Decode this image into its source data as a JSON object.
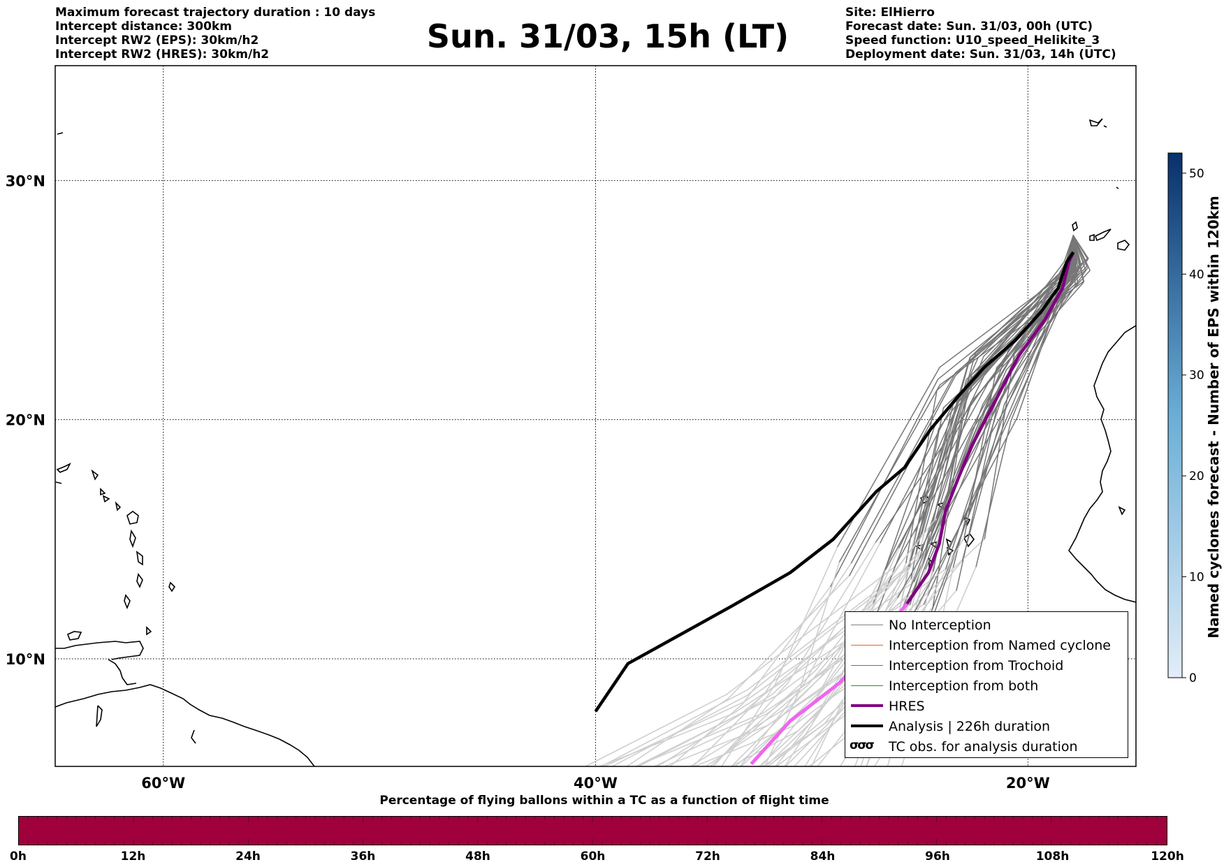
{
  "header": {
    "title": "Sun. 31/03, 15h (LT)",
    "left_lines": [
      "Maximum forecast trajectory duration : 10 days",
      "Intercept distance: 300km",
      "Intercept RW2 (EPS):  30km/h2",
      "Intercept RW2 (HRES): 30km/h2"
    ],
    "right_lines": [
      "Site: ElHierro",
      "Forecast date: Sun. 31/03, 00h (UTC)",
      "Speed function: U10_speed_Helikite_3",
      "Deployment date: Sun. 31/03, 14h (UTC)"
    ]
  },
  "map": {
    "lon_range": [
      -65,
      -15
    ],
    "lat_range": [
      5.5,
      34.8
    ],
    "lat_labels": [
      "30°N",
      "20°N",
      "10°N"
    ],
    "lat_values": [
      30,
      20,
      10
    ],
    "lon_labels": [
      "60°W",
      "40°W",
      "20°W"
    ],
    "lon_values": [
      -60,
      -40,
      -20
    ],
    "launch_site": {
      "lon": -17.9,
      "lat": 27.7
    },
    "analysis_track": [
      [
        -17.9,
        27.0
      ],
      [
        -18.2,
        26.6
      ],
      [
        -18.6,
        25.5
      ],
      [
        -19.4,
        24.5
      ],
      [
        -20.6,
        23.3
      ],
      [
        -22.0,
        22.2
      ],
      [
        -23.2,
        21.0
      ],
      [
        -24.5,
        19.6
      ],
      [
        -25.7,
        18.0
      ],
      [
        -27.0,
        17.0
      ],
      [
        -29.0,
        15.0
      ],
      [
        -31.0,
        13.6
      ],
      [
        -33.7,
        12.2
      ],
      [
        -36.3,
        10.9
      ],
      [
        -38.5,
        9.8
      ],
      [
        -40.0,
        7.8
      ]
    ],
    "hres_track": [
      [
        -17.9,
        27.0
      ],
      [
        -18.1,
        26.6
      ],
      [
        -18.4,
        25.5
      ],
      [
        -19.2,
        24.2
      ],
      [
        -20.4,
        22.7
      ],
      [
        -21.5,
        20.8
      ],
      [
        -22.6,
        18.9
      ],
      [
        -23.2,
        17.6
      ],
      [
        -23.8,
        16.2
      ],
      [
        -24.1,
        14.8
      ],
      [
        -24.6,
        13.6
      ],
      [
        -25.6,
        12.3
      ],
      [
        -27.1,
        10.6
      ],
      [
        -28.7,
        9.0
      ],
      [
        -31.0,
        7.4
      ],
      [
        -32.8,
        5.6
      ]
    ]
  },
  "colorbar": {
    "label": "Named cyclones forecast - Number of EPS within 120km",
    "ticks": [
      "0",
      "10",
      "20",
      "30",
      "40",
      "50"
    ],
    "min": 0,
    "max": 52,
    "color_low": "#e2edf8",
    "color_high": "#08306b"
  },
  "legend": {
    "items": [
      {
        "label": "No Interception",
        "color": "#808080"
      },
      {
        "label": "Interception from Named cyclone",
        "color": "#e8622a"
      },
      {
        "label": "Interception from Trochoid",
        "color": "#808000"
      },
      {
        "label": "Interception from both",
        "color": "#2e8b2e"
      },
      {
        "label": "HRES",
        "color": "#800080"
      },
      {
        "label": "Analysis | 226h duration",
        "color": "#000000"
      },
      {
        "label": "TC obs. for analysis duration",
        "color": "#000000",
        "glyph": "σσσ"
      }
    ]
  },
  "progress": {
    "title": "Percentage of flying ballons within a TC as a function of flight time",
    "tick_labels": [
      "0h",
      "12h",
      "24h",
      "36h",
      "48h",
      "60h",
      "72h",
      "84h",
      "96h",
      "108h",
      "120h"
    ],
    "color": "#a0003c"
  }
}
